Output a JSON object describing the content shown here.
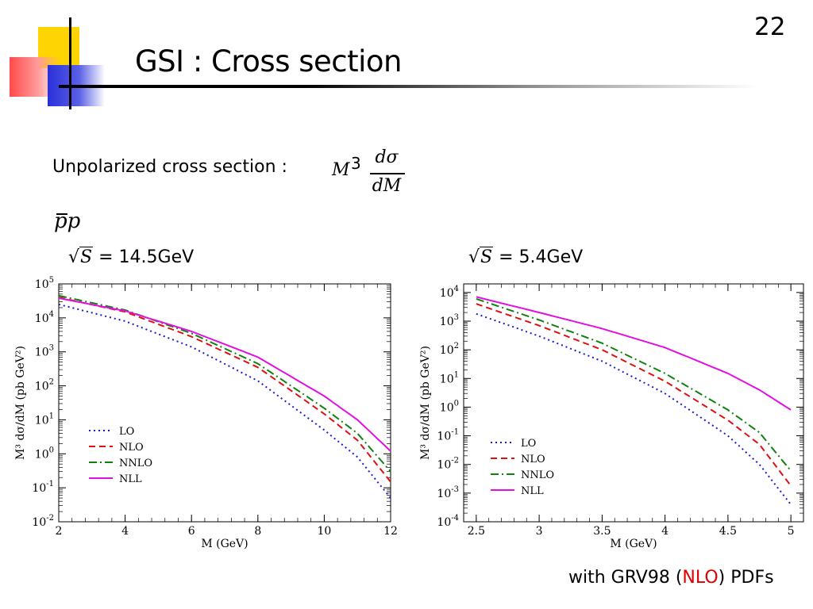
{
  "slide": {
    "title": "GSI : Cross section",
    "page_number": "22",
    "subtitle_label": "Unpolarized cross section :",
    "formula": {
      "prefix": "M",
      "power": "3",
      "numerator": "dσ",
      "denominator": "dM"
    },
    "process": {
      "p1": "p",
      "p2": "p"
    },
    "footer": {
      "pre": "with GRV98 (",
      "highlight": "NLO",
      "post": ") PDFs"
    },
    "colors": {
      "accent": "#e00000",
      "deco_yellow": "#ffd400",
      "deco_red": "#ff4a4a",
      "deco_blue": "#2a30d8"
    }
  },
  "chart_data": [
    {
      "type": "line",
      "energy_label": {
        "sqrt": "√",
        "var": "S",
        "rest": "= 14.5GeV"
      },
      "xlabel": "M (GeV)",
      "ylabel": "M³ dσ/dM (pb GeV²)",
      "xlim": [
        2,
        12
      ],
      "ylim_log10": [
        -2,
        5
      ],
      "yscale": "log",
      "x_ticks": [
        "2",
        "4",
        "6",
        "8",
        "10",
        "12"
      ],
      "y_ticks": [
        {
          "base": "10",
          "exp": "-2"
        },
        {
          "base": "10",
          "exp": "-1"
        },
        {
          "base": "10",
          "exp": "0"
        },
        {
          "base": "10",
          "exp": "1"
        },
        {
          "base": "10",
          "exp": "2"
        },
        {
          "base": "10",
          "exp": "3"
        },
        {
          "base": "10",
          "exp": "4"
        },
        {
          "base": "10",
          "exp": "5"
        }
      ],
      "legend_position": "lower-left",
      "series": [
        {
          "name": "LO",
          "color": "#1a1ad0",
          "dash": "dotted",
          "x": [
            2,
            4,
            6,
            8,
            10,
            11,
            12
          ],
          "y": [
            25000,
            8000,
            1400,
            140,
            5,
            0.8,
            0.05
          ]
        },
        {
          "name": "NLO",
          "color": "#e01010",
          "dash": "dashed",
          "x": [
            2,
            4,
            6,
            8,
            10,
            11,
            12
          ],
          "y": [
            40000,
            15000,
            2800,
            350,
            15,
            2.5,
            0.15
          ]
        },
        {
          "name": "NNLO",
          "color": "#108010",
          "dash": "dashdot",
          "x": [
            2,
            4,
            6,
            8,
            10,
            11,
            12
          ],
          "y": [
            45000,
            17000,
            3500,
            450,
            22,
            4,
            0.3
          ]
        },
        {
          "name": "NLL",
          "color": "#e010e0",
          "dash": "solid",
          "x": [
            2,
            4,
            6,
            8,
            10,
            11,
            12
          ],
          "y": [
            38000,
            16000,
            4000,
            700,
            50,
            10,
            1.2
          ]
        }
      ]
    },
    {
      "type": "line",
      "energy_label": {
        "sqrt": "√",
        "var": "S",
        "rest": "= 5.4GeV"
      },
      "xlabel": "M (GeV)",
      "ylabel": "M³ dσ/dM (pb GeV²)",
      "xlim": [
        2.4,
        5.1
      ],
      "ylim_log10": [
        -4,
        4.3
      ],
      "yscale": "log",
      "x_ticks": [
        "2.5",
        "3",
        "3.5",
        "4",
        "4.5",
        "5"
      ],
      "y_ticks": [
        {
          "base": "10",
          "exp": "-4"
        },
        {
          "base": "10",
          "exp": "-3"
        },
        {
          "base": "10",
          "exp": "-2"
        },
        {
          "base": "10",
          "exp": "-1"
        },
        {
          "base": "10",
          "exp": "0"
        },
        {
          "base": "10",
          "exp": "1"
        },
        {
          "base": "10",
          "exp": "2"
        },
        {
          "base": "10",
          "exp": "3"
        },
        {
          "base": "10",
          "exp": "4"
        }
      ],
      "legend_position": "lower-left",
      "series": [
        {
          "name": "LO",
          "color": "#1a1ad0",
          "dash": "dotted",
          "x": [
            2.5,
            3,
            3.5,
            4,
            4.5,
            4.75,
            5
          ],
          "y": [
            1800,
            300,
            40,
            3,
            0.1,
            0.01,
            0.0004
          ]
        },
        {
          "name": "NLO",
          "color": "#e01010",
          "dash": "dashed",
          "x": [
            2.5,
            3,
            3.5,
            4,
            4.5,
            4.75,
            5
          ],
          "y": [
            4000,
            700,
            100,
            8,
            0.35,
            0.05,
            0.0018
          ]
        },
        {
          "name": "NNLO",
          "color": "#108010",
          "dash": "dashdot",
          "x": [
            2.5,
            3,
            3.5,
            4,
            4.5,
            4.75,
            5
          ],
          "y": [
            6000,
            1100,
            170,
            15,
            0.8,
            0.13,
            0.006
          ]
        },
        {
          "name": "NLL",
          "color": "#e010e0",
          "dash": "solid",
          "x": [
            2.5,
            3,
            3.5,
            4,
            4.5,
            4.75,
            5
          ],
          "y": [
            7000,
            2000,
            550,
            120,
            15,
            4,
            0.8
          ]
        }
      ]
    }
  ]
}
